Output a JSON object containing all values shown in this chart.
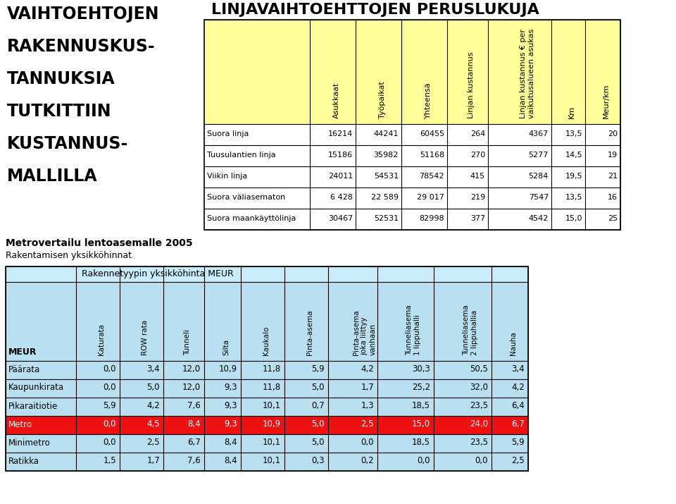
{
  "left_title_lines": [
    "VAIHTOEHTOJEN",
    "RAKENNUSKUS-",
    "TANNUKSIA",
    "TUTKITTIIN",
    "KUSTANNUS-",
    "MALLILLA"
  ],
  "top_title": "LINJAVAIHTOEHTTOJEN PERUSLUKUJA",
  "table1_yellow": "#FFFF99",
  "table1_col_headers": [
    "Asukkaat",
    "Työpaikat",
    "Yhteensä",
    "Linjan kustannus",
    "Linjan kustannus € per\nvaikutusalueen asukas",
    "Km",
    "Meur/km"
  ],
  "table1_rows": [
    [
      "Suora linja",
      "16214",
      "44241",
      "60455",
      "264",
      "4367",
      "13,5",
      "20"
    ],
    [
      "Tuusulantien linja",
      "15186",
      "35982",
      "51168",
      "270",
      "5277",
      "14,5",
      "19"
    ],
    [
      "Viikin linja",
      "24011",
      "54531",
      "78542",
      "415",
      "5284",
      "19,5",
      "21"
    ],
    [
      "Suora väliasematon",
      "6 428",
      "22 589",
      "29 017",
      "219",
      "7547",
      "13,5",
      "16"
    ],
    [
      "Suora maankäyttölinja",
      "30467",
      "52531",
      "82998",
      "377",
      "4542",
      "15,0",
      "25"
    ]
  ],
  "section_title1": "Metrovertailu lentoasemalle 2005",
  "section_title2": "Rakentamisen yksikköhinnat",
  "table2_subheader": "Rakennetyypin yksikköhinta MEUR",
  "table2_col_headers": [
    "Katurata",
    "ROW rata",
    "Tunneli",
    "Silta",
    "Kaukalo",
    "Pinta-asema",
    "Pinta-asema\njoka liittyy\nvanhaan",
    "Tunneliasema\n1 lippuhalli",
    "Tunneliasema\n2 lippuhallia",
    "Nauha"
  ],
  "table2_row_header": "MEUR",
  "table2_rows": [
    [
      "Päärata",
      "0,0",
      "3,4",
      "12,0",
      "10,9",
      "11,8",
      "5,9",
      "4,2",
      "30,3",
      "50,5",
      "3,4"
    ],
    [
      "Kaupunkirata",
      "0,0",
      "5,0",
      "12,0",
      "9,3",
      "11,8",
      "5,0",
      "1,7",
      "25,2",
      "32,0",
      "4,2"
    ],
    [
      "Pikaraitiotie",
      "5,9",
      "4,2",
      "7,6",
      "9,3",
      "10,1",
      "0,7",
      "1,3",
      "18,5",
      "23,5",
      "6,4"
    ],
    [
      "Metro",
      "0,0",
      "4,5",
      "8,4",
      "9,3",
      "10,9",
      "5,0",
      "2,5",
      "15,0",
      "24,0",
      "6,7"
    ],
    [
      "Minimetro",
      "0,0",
      "2,5",
      "6,7",
      "8,4",
      "10,1",
      "5,0",
      "0,0",
      "18,5",
      "23,5",
      "5,9"
    ],
    [
      "Ratikka",
      "1,5",
      "1,7",
      "7,6",
      "8,4",
      "10,1",
      "0,3",
      "0,2",
      "0,0",
      "0,0",
      "2,5"
    ]
  ],
  "table2_row_colors": [
    "#B8E0F0",
    "#B8E0F0",
    "#B8E0F0",
    "#EE1111",
    "#B8E0F0",
    "#B8E0F0"
  ],
  "table2_text_colors": [
    "#000000",
    "#000000",
    "#000000",
    "#FFFFFF",
    "#000000",
    "#000000"
  ],
  "table2_header_bg": "#B8E0F0",
  "table2_subheader_bg": "#C8ECFA",
  "white": "#FFFFFF",
  "black": "#000000"
}
